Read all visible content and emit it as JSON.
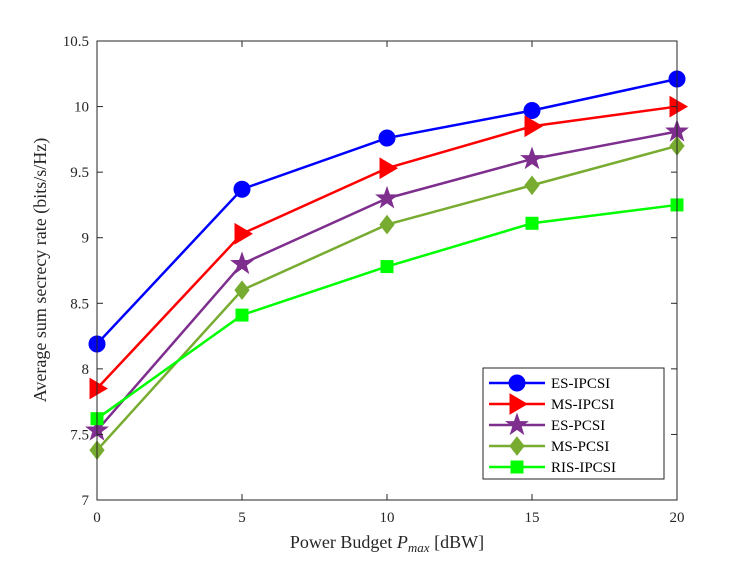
{
  "chart_data": {
    "type": "line",
    "xlabel_prefix": "Power Budget ",
    "xlabel_var": "P",
    "xlabel_sub": "max",
    "xlabel_suffix": " [dBW]",
    "ylabel": "Average sum secrecy rate (bits/s/Hz)",
    "x": [
      0,
      5,
      10,
      15,
      20
    ],
    "xlim": [
      0,
      20
    ],
    "ylim": [
      7,
      10.5
    ],
    "xticks": [
      "0",
      "5",
      "10",
      "15",
      "20"
    ],
    "yticks": [
      "7",
      "7.5",
      "8",
      "8.5",
      "9",
      "9.5",
      "10",
      "10.5"
    ],
    "grid": false,
    "legend_location": "bottom-right",
    "series": [
      {
        "name": "ES-IPCSI",
        "values": [
          8.19,
          9.37,
          9.76,
          9.97,
          10.21
        ],
        "color": "#0000ff",
        "marker": "circle"
      },
      {
        "name": "MS-IPCSI",
        "values": [
          7.85,
          9.03,
          9.53,
          9.85,
          10.0
        ],
        "color": "#ff0000",
        "marker": "triangle-right"
      },
      {
        "name": "ES-PCSI",
        "values": [
          7.53,
          8.8,
          9.3,
          9.6,
          9.81
        ],
        "color": "#7e2f8e",
        "marker": "star"
      },
      {
        "name": "MS-PCSI",
        "values": [
          7.38,
          8.6,
          9.1,
          9.4,
          9.7
        ],
        "color": "#77ac30",
        "marker": "diamond"
      },
      {
        "name": "RIS-IPCSI",
        "values": [
          7.62,
          8.41,
          8.78,
          9.11,
          9.25
        ],
        "color": "#00ff00",
        "marker": "square"
      }
    ]
  }
}
